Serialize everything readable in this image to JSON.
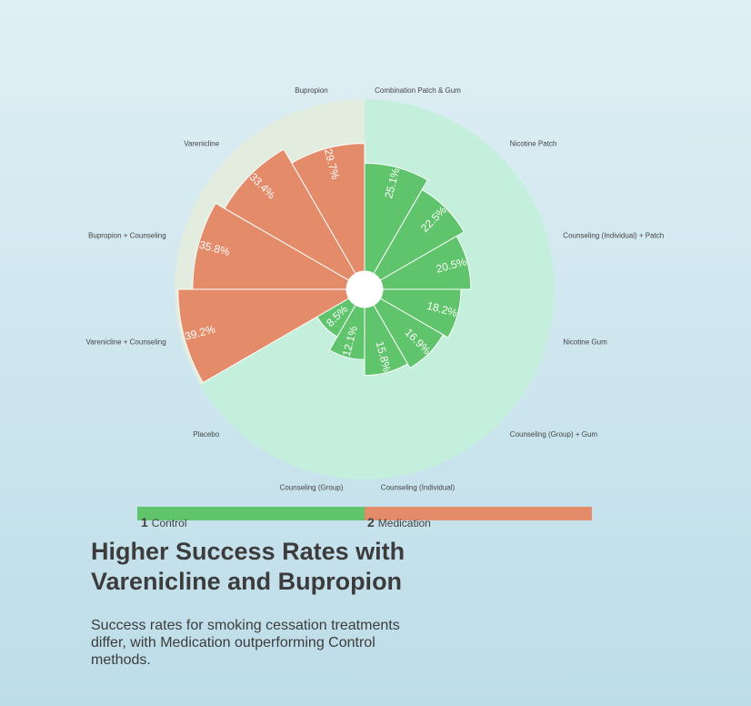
{
  "chart_data": {
    "type": "polar-bar",
    "title": "Higher Success Rates with Varenicline and Bupropion",
    "subtitle": "Success rates for smoking cessation treatments differ, with Medication outperforming Control methods.",
    "max_value": 40,
    "categories": [
      "Combination Patch & Gum",
      "Nicotine Patch",
      "Counseling (Individual) + Patch",
      "Nicotine Gum",
      "Counseling (Group) + Gum",
      "Counseling (Individual)",
      "Counseling (Group)",
      "Placebo",
      "Varenicline + Counseling",
      "Bupropion + Counseling",
      "Varenicline",
      "Bupropion"
    ],
    "groups": [
      {
        "key": "control",
        "num": "1",
        "name": "Control",
        "color": "#5fc46b",
        "bg": "#c4efdc"
      },
      {
        "key": "medication",
        "num": "2",
        "name": "Medication",
        "color": "#e48b6a",
        "bg": "#e2ecdf"
      }
    ],
    "values": [
      {
        "category": "Combination Patch & Gum",
        "value": 25.1,
        "label": "25.1%",
        "group": "control"
      },
      {
        "category": "Nicotine Patch",
        "value": 22.5,
        "label": "22.5%",
        "group": "control"
      },
      {
        "category": "Counseling (Individual) + Patch",
        "value": 20.5,
        "label": "20.5%",
        "group": "control"
      },
      {
        "category": "Nicotine Gum",
        "value": 18.2,
        "label": "18.2%",
        "group": "control"
      },
      {
        "category": "Counseling (Group) + Gum",
        "value": 16.9,
        "label": "16.9%",
        "group": "control"
      },
      {
        "category": "Counseling (Individual)",
        "value": 15.8,
        "label": "15.8%",
        "group": "control"
      },
      {
        "category": "Counseling (Group)",
        "value": 12.1,
        "label": "12.1%",
        "group": "control"
      },
      {
        "category": "Placebo",
        "value": 8.5,
        "label": "8.5%",
        "group": "control"
      },
      {
        "category": "Varenicline + Counseling",
        "value": 39.2,
        "label": "39.2%",
        "group": "medication"
      },
      {
        "category": "Bupropion + Counseling",
        "value": 35.8,
        "label": "35.8%",
        "group": "medication"
      },
      {
        "category": "Varenicline",
        "value": 33.4,
        "label": "33.4%",
        "group": "medication"
      },
      {
        "category": "Bupropion",
        "value": 29.7,
        "label": "29.7%",
        "group": "medication"
      }
    ]
  }
}
